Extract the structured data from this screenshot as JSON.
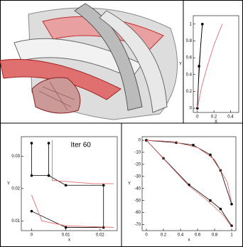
{
  "chart_data": [
    {
      "type": "line",
      "x_label": "X",
      "y_label": "Y",
      "xlim": [
        -0.05,
        0.5
      ],
      "xticks": [
        0,
        0.2,
        0.4
      ],
      "ylim": [
        -0.05,
        1.1
      ],
      "yticks": [
        0,
        0.2,
        0.4,
        0.6,
        0.8,
        1
      ],
      "series": [
        {
          "color": "#000000",
          "markers": true,
          "x": [
            0,
            0.02,
            0.06
          ],
          "values": [
            0,
            0.5,
            1
          ]
        },
        {
          "color": "#000000",
          "markers": false,
          "x": [
            0,
            0.01,
            0.025,
            0.04,
            0.06
          ],
          "values": [
            0,
            0.25,
            0.5,
            0.75,
            1
          ]
        },
        {
          "color": "#e06060",
          "markers": false,
          "x": [
            0,
            0.05,
            0.12,
            0.2,
            0.3
          ],
          "values": [
            0,
            0.25,
            0.5,
            0.75,
            1
          ]
        }
      ]
    },
    {
      "type": "line",
      "annotation": "Iter 60",
      "x_label": "x",
      "y_label": "Y",
      "xlim": [
        -0.003,
        0.025
      ],
      "xticks": [
        0,
        0.01,
        0.02
      ],
      "ylim": [
        0.007,
        0.036
      ],
      "yticks": [
        0.01,
        0.02,
        0.03
      ],
      "series": [
        {
          "color": "#000000",
          "markers": true,
          "x": [
            0,
            0,
            0.005,
            0.005
          ],
          "values": [
            0.034,
            0.024,
            0.024,
            0.034
          ]
        },
        {
          "color": "#000000",
          "markers": true,
          "x": [
            0.005,
            0.01,
            0.021,
            0.021,
            0.01,
            0
          ],
          "values": [
            0.024,
            0.021,
            0.021,
            0.008,
            0.008,
            0.013
          ]
        },
        {
          "color": "#e06060",
          "markers": false,
          "x": [
            0.006,
            0.006,
            0.018,
            0.024
          ],
          "values": [
            0.035,
            0.0225,
            0.0215,
            0.0215
          ]
        },
        {
          "color": "#e06060",
          "markers": false,
          "x": [
            0,
            0.003,
            0.01,
            0.024
          ],
          "values": [
            0.018,
            0.01,
            0.0085,
            0.008
          ]
        }
      ]
    },
    {
      "type": "line",
      "x_label": "x",
      "y_label": "Y",
      "xlim": [
        -0.05,
        1.05
      ],
      "xticks": [
        0,
        0.2,
        0.4,
        0.6,
        0.8,
        1
      ],
      "ylim": [
        -75,
        3
      ],
      "yticks": [
        0,
        -10,
        -20,
        -30,
        -40,
        -50,
        -60,
        -70
      ],
      "series": [
        {
          "color": "#000000",
          "markers": true,
          "x": [
            0,
            0.35,
            0.55,
            0.75,
            0.87,
            1
          ],
          "values": [
            0,
            -2,
            -4,
            -12,
            -25,
            -53
          ]
        },
        {
          "color": "#000000",
          "markers": true,
          "x": [
            0,
            0.2,
            0.5,
            0.75,
            0.87,
            1
          ],
          "values": [
            0,
            -15,
            -37,
            -50,
            -57,
            -71
          ]
        },
        {
          "color": "#e06060",
          "markers": false,
          "x": [
            0,
            0.3,
            0.6,
            0.8,
            0.95,
            1
          ],
          "values": [
            0,
            -1,
            -6,
            -16,
            -35,
            -52
          ]
        },
        {
          "color": "#e06060",
          "markers": false,
          "x": [
            0,
            0.25,
            0.5,
            0.7,
            0.9,
            1
          ],
          "values": [
            0,
            -19,
            -38,
            -49,
            -62,
            -72
          ]
        }
      ]
    }
  ]
}
